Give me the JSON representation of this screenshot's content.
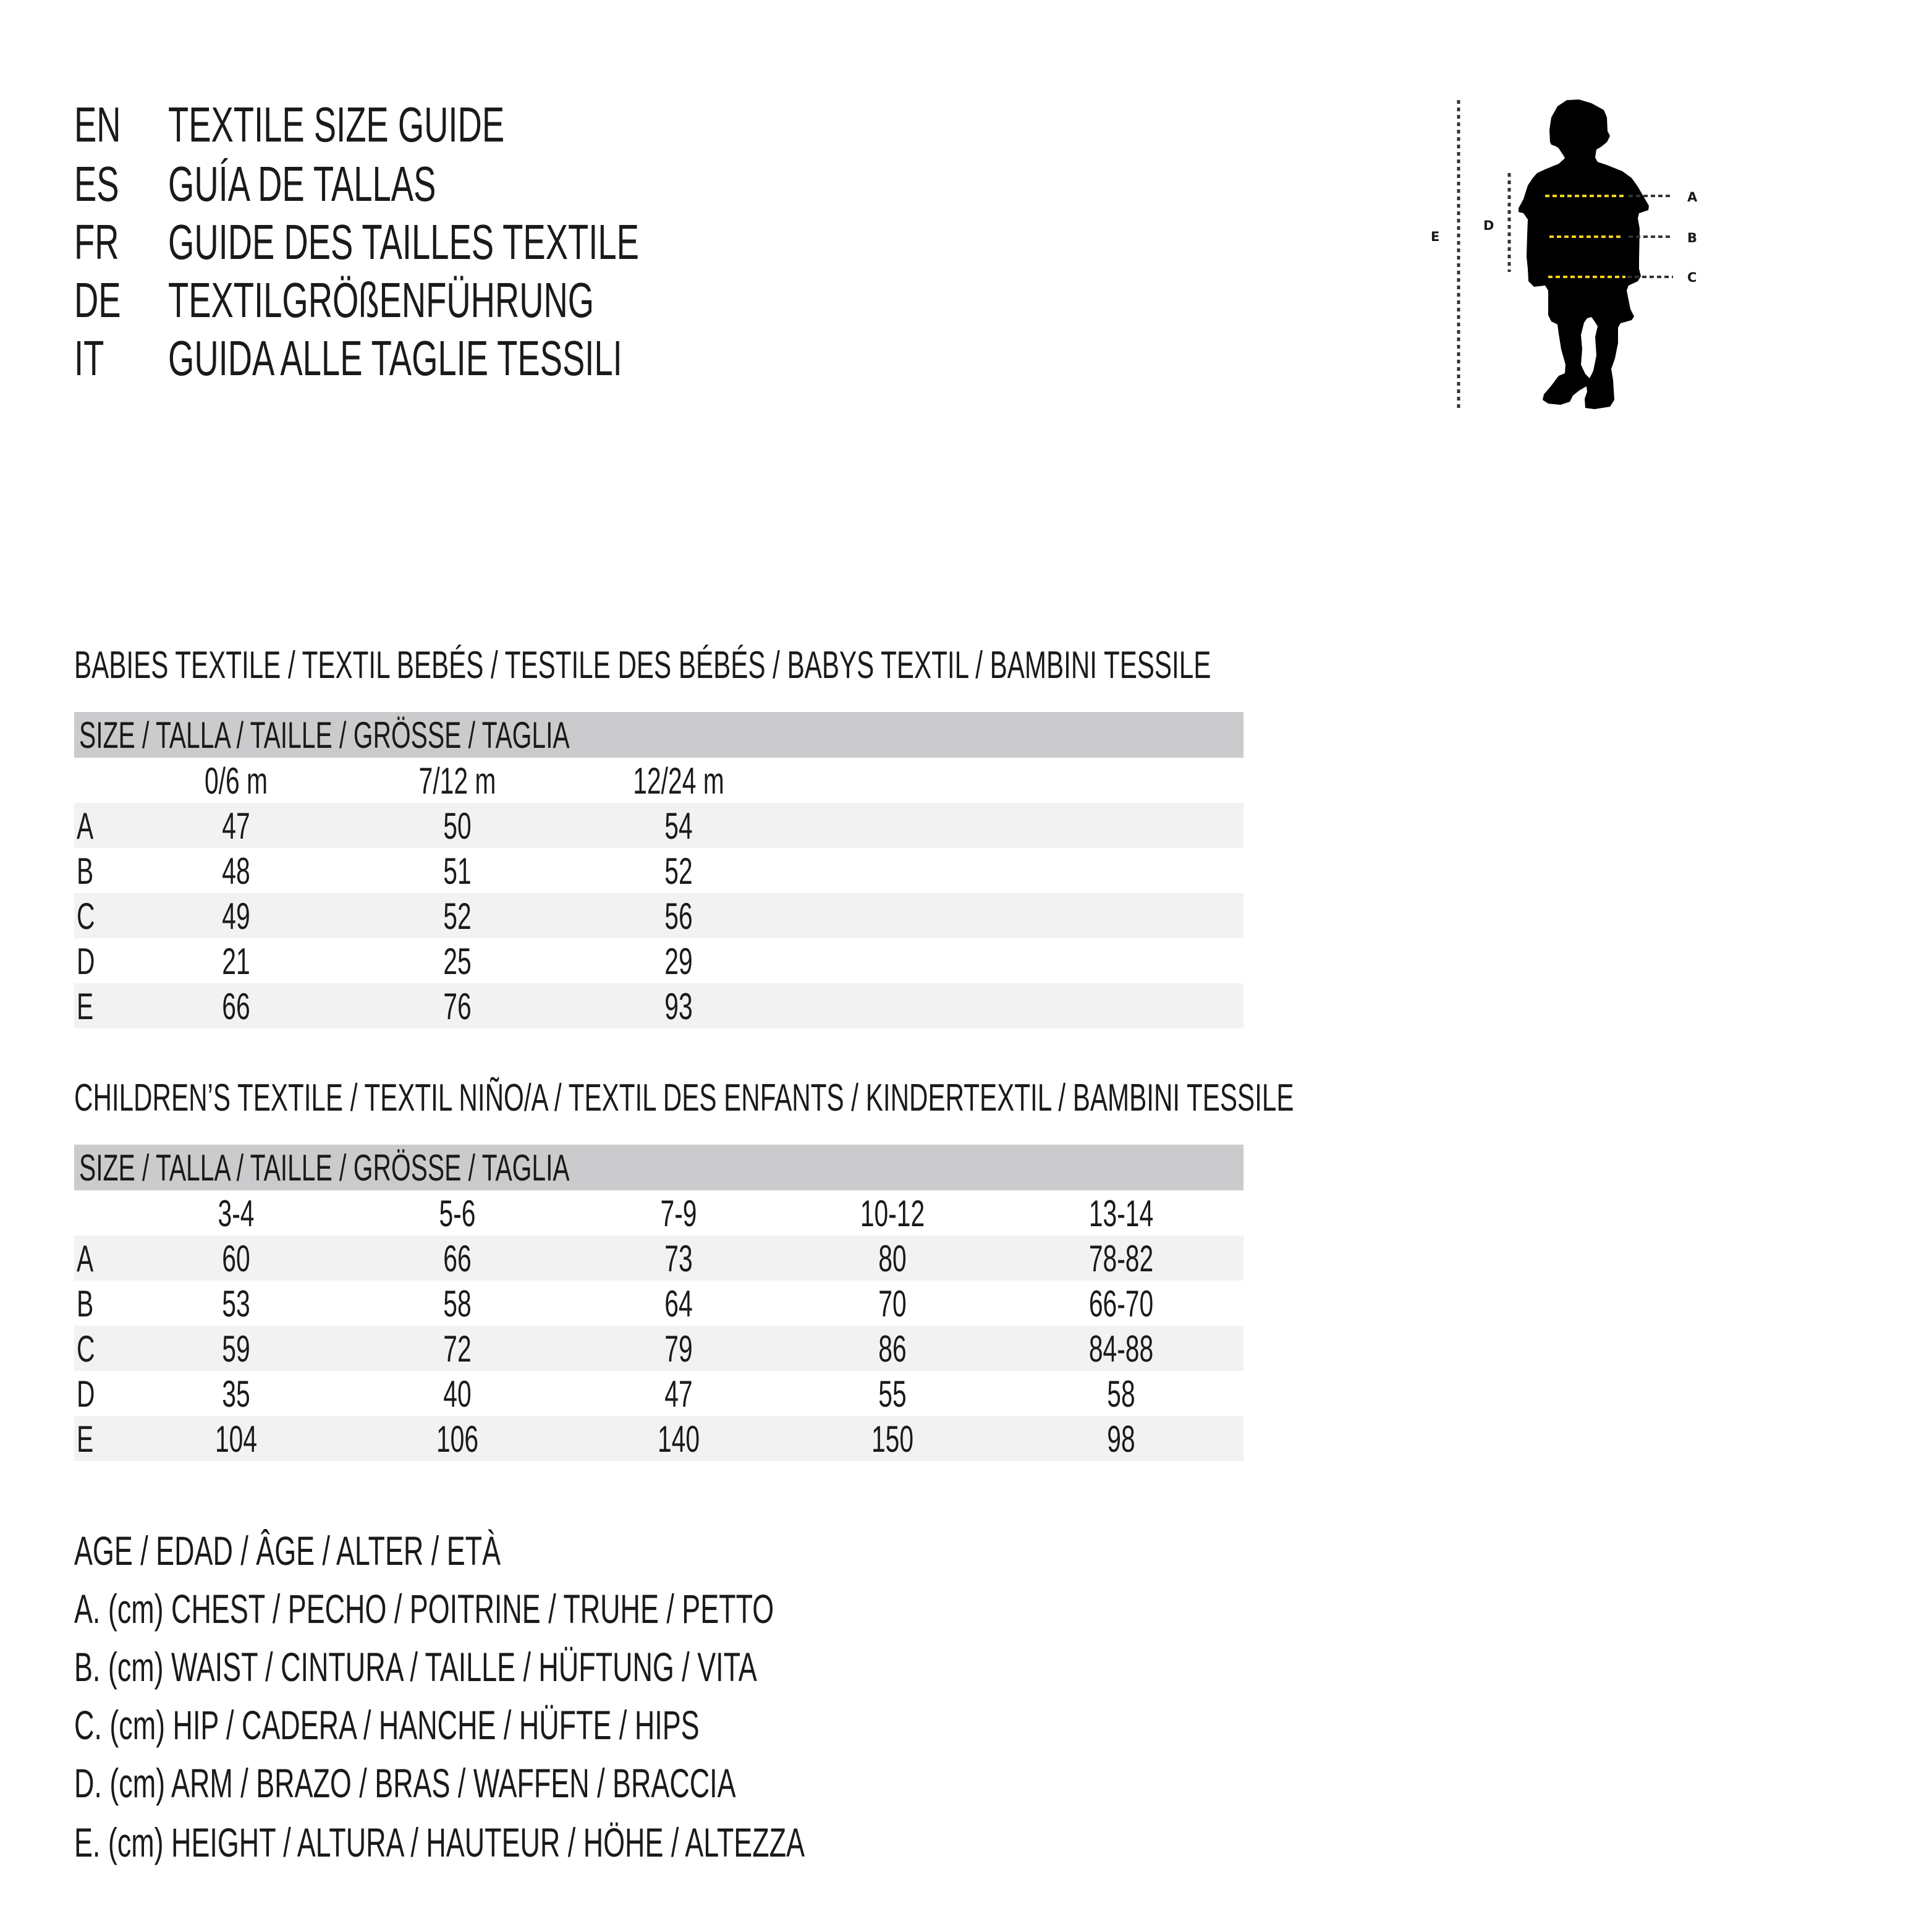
{
  "header": [
    {
      "code": "EN",
      "text": "TEXTILE SIZE GUIDE"
    },
    {
      "code": "ES",
      "text": "GUÍA DE TALLAS"
    },
    {
      "code": "FR",
      "text": "GUIDE DES TAILLES TEXTILE"
    },
    {
      "code": "DE",
      "text": "TEXTILGRÖßENFÜHRUNG"
    },
    {
      "code": "IT",
      "text": "GUIDA ALLE TAGLIE TESSILI"
    }
  ],
  "babies": {
    "title": "BABIES TEXTILE / TEXTIL BEBÉS / TESTILE DES BÉBÉS / BABYS TEXTIL / BAMBINI TESSILE",
    "size_label": "SIZE / TALLA / TAILLE / GRÖSSE / TAGLIA",
    "columns": [
      "0/6 m",
      "7/12 m",
      "12/24 m"
    ],
    "rows": [
      {
        "label": "A",
        "values": [
          "47",
          "50",
          "54"
        ]
      },
      {
        "label": "B",
        "values": [
          "48",
          "51",
          "52"
        ]
      },
      {
        "label": "C",
        "values": [
          "49",
          "52",
          "56"
        ]
      },
      {
        "label": "D",
        "values": [
          "21",
          "25",
          "29"
        ]
      },
      {
        "label": "E",
        "values": [
          "66",
          "76",
          "93"
        ]
      }
    ]
  },
  "children": {
    "title": "CHILDREN’S TEXTILE / TEXTIL NIÑO/A / TEXTIL DES ENFANTS / KINDERTEXTIL / BAMBINI TESSILE",
    "size_label": "SIZE / TALLA / TAILLE / GRÖSSE / TAGLIA",
    "columns": [
      "3-4",
      "5-6",
      "7-9",
      "10-12",
      "13-14"
    ],
    "rows": [
      {
        "label": "A",
        "values": [
          "60",
          "66",
          "73",
          "80",
          "78-82"
        ]
      },
      {
        "label": "B",
        "values": [
          "53",
          "58",
          "64",
          "70",
          "66-70"
        ]
      },
      {
        "label": "C",
        "values": [
          "59",
          "72",
          "79",
          "86",
          "84-88"
        ]
      },
      {
        "label": "D",
        "values": [
          "35",
          "40",
          "47",
          "55",
          "58"
        ]
      },
      {
        "label": "E",
        "values": [
          "104",
          "106",
          "140",
          "150",
          "98"
        ]
      }
    ]
  },
  "legend": [
    "AGE / EDAD / ÂGE / ALTER / ETÀ",
    "A. (cm) CHEST / PECHO / POITRINE / TRUHE / PETTO",
    "B. (cm) WAIST / CINTURA / TAILLE / HÜFTUNG / VITA",
    "C. (cm) HIP / CADERA / HANCHE / HÜFTE / HIPS",
    "D. (cm) ARM / BRAZO / BRAS / WAFFEN / BRACCIA",
    "E. (cm) HEIGHT / ALTURA / HAUTEUR / HÖHE / ALTEZZA"
  ],
  "figure": {
    "icon": "child-silhouette-icon",
    "labels": {
      "a": "A",
      "b": "B",
      "c": "C",
      "d": "D",
      "e": "E"
    },
    "colors": {
      "measure_line": "#f2d31b",
      "guide_line": "#333333",
      "silhouette": "#000000"
    }
  }
}
